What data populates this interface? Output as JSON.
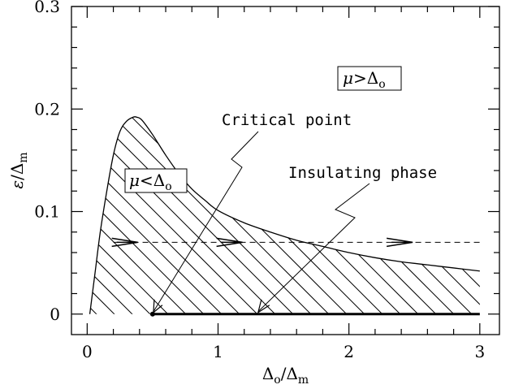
{
  "chart_data": {
    "type": "line",
    "xlabel": {
      "base": "Δ",
      "sub": "o",
      "sep": "/",
      "base2": "Δ",
      "sub2": "m"
    },
    "ylabel": {
      "base": "ε",
      "sep": "/",
      "base2": "Δ",
      "sub2": "m"
    },
    "xlim": [
      -0.12,
      3.15
    ],
    "ylim": [
      -0.02,
      0.3
    ],
    "x_ticks": [
      0,
      1,
      2,
      3
    ],
    "x_tick_labels": [
      "0",
      "1",
      "2",
      "3"
    ],
    "y_ticks": [
      0,
      0.1,
      0.2,
      0.3
    ],
    "y_tick_labels": [
      "0",
      "0.1",
      "0.2",
      "0.3"
    ],
    "grid": false,
    "boundary": {
      "name": "phase boundary",
      "x": [
        0.02,
        0.06,
        0.1,
        0.15,
        0.2,
        0.25,
        0.3,
        0.35,
        0.38,
        0.42,
        0.5,
        0.6,
        0.7,
        0.8,
        0.9,
        1.0,
        1.2,
        1.4,
        1.6,
        1.8,
        2.0,
        2.2,
        2.4,
        2.6,
        2.8,
        3.0
      ],
      "y": [
        0.0,
        0.04,
        0.08,
        0.12,
        0.155,
        0.178,
        0.188,
        0.192,
        0.192,
        0.189,
        0.175,
        0.155,
        0.137,
        0.122,
        0.111,
        0.101,
        0.089,
        0.08,
        0.072,
        0.066,
        0.06,
        0.055,
        0.051,
        0.048,
        0.045,
        0.042
      ]
    },
    "insulating_phase": {
      "x": [
        0.5,
        3.0
      ],
      "y": 0
    },
    "critical_point": {
      "x": 0.5,
      "y": 0
    },
    "dashed_level": 0.07,
    "flow_arrows_x": [
      0.3,
      1.1,
      2.4
    ],
    "annotations": [
      {
        "id": "critical",
        "text": "Critical point"
      },
      {
        "id": "insulating",
        "text": "Insulating phase"
      }
    ],
    "region_labels": [
      {
        "id": "above",
        "mu": "μ",
        "rel": ">",
        "delta": "Δ",
        "sub": "o"
      },
      {
        "id": "below",
        "mu": "μ",
        "rel": "<",
        "delta": "Δ",
        "sub": "o"
      }
    ]
  }
}
